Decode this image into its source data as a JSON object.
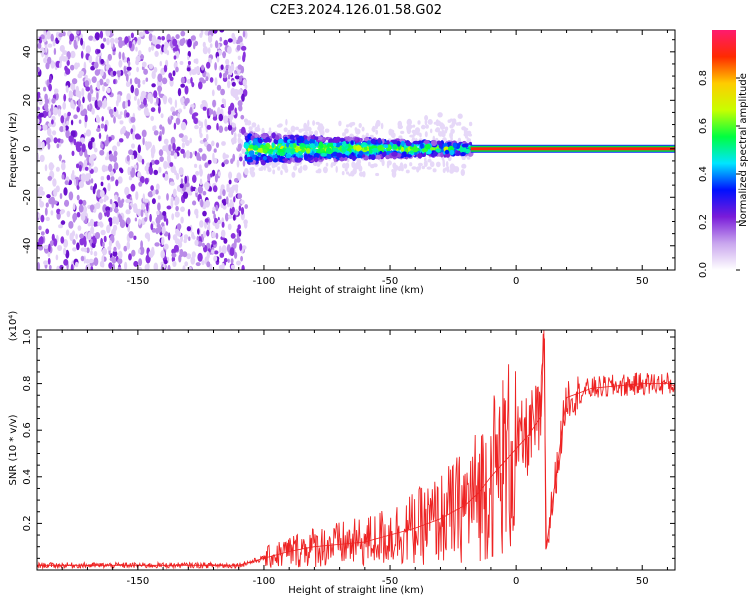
{
  "title": "C2E3.2024.126.01.58.G02",
  "chart_data": [
    {
      "type": "heatmap",
      "xlabel": "Height of straight line (km)",
      "ylabel": "Frequency (Hz)",
      "xlim": [
        -190,
        63
      ],
      "ylim": [
        -50,
        49
      ],
      "xticks": [
        "-150",
        "-100",
        "-50",
        "0",
        "50"
      ],
      "yticks": [
        "-40",
        "-20",
        "0",
        "20",
        "40"
      ],
      "colorbar": {
        "label": "Normalized spectral amplitude",
        "range": [
          0,
          1
        ],
        "ticks": [
          "0.0",
          "0.2",
          "0.4",
          "0.6",
          "0.8"
        ],
        "colors": [
          "#ffffff",
          "#c9a6ee",
          "#7a1cd9",
          "#0010ff",
          "#00e5ff",
          "#00ff40",
          "#c8ff00",
          "#ffcc00",
          "#ff2a00",
          "#ff1a6e"
        ]
      },
      "regions": [
        {
          "x_from": -190,
          "x_to": -107,
          "pattern": "diffuse noise",
          "freq_from": -50,
          "freq_to": 49
        },
        {
          "x_from": -107,
          "x_to": -18,
          "pattern": "signal band",
          "center_hz": 0,
          "width_hz": 10
        },
        {
          "x_from": -18,
          "x_to": 63,
          "pattern": "strong tone",
          "center_hz": 0,
          "width_hz": 1
        }
      ]
    },
    {
      "type": "line",
      "xlabel": "Height of straight line (km)",
      "ylabel": "SNR (10 * v/v)",
      "y_scale_note": "(x10⁴)",
      "xlim": [
        -190,
        63
      ],
      "ylim": [
        0,
        1.03
      ],
      "xticks": [
        "-150",
        "-100",
        "-50",
        "0",
        "50"
      ],
      "yticks": [
        "0.2",
        "0.4",
        "0.6",
        "0.8",
        "1.0"
      ],
      "color": "#ee2222",
      "x": [
        -190,
        -170,
        -150,
        -130,
        -110,
        -100,
        -90,
        -80,
        -70,
        -60,
        -50,
        -40,
        -30,
        -20,
        -15,
        -10,
        -5,
        0,
        5,
        10,
        11,
        12,
        20,
        30,
        40,
        50,
        60,
        63
      ],
      "y": [
        0.02,
        0.02,
        0.02,
        0.02,
        0.02,
        0.05,
        0.08,
        0.1,
        0.11,
        0.12,
        0.15,
        0.18,
        0.22,
        0.28,
        0.33,
        0.4,
        0.46,
        0.52,
        0.58,
        0.66,
        1.03,
        0.1,
        0.74,
        0.78,
        0.79,
        0.8,
        0.8,
        0.79
      ]
    }
  ]
}
